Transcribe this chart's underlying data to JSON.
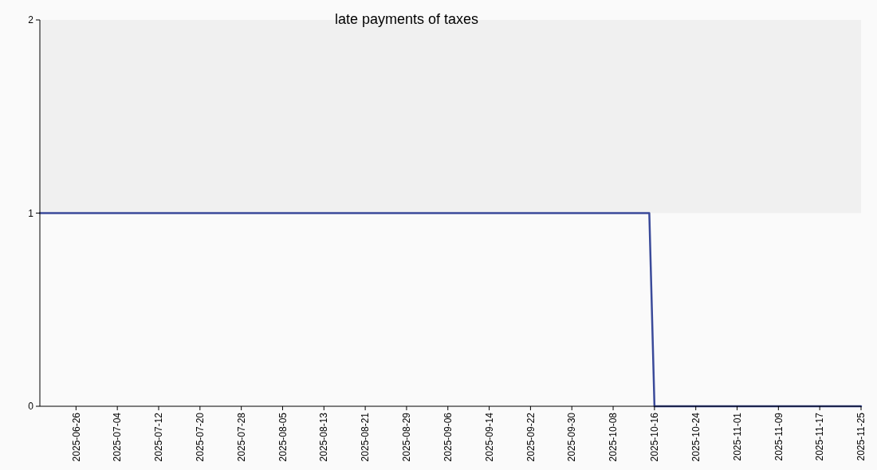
{
  "chart_data": {
    "type": "line",
    "title": "late payments of taxes",
    "x": [
      "2025-06-19",
      "2025-10-15",
      "2025-10-16",
      "2025-11-25"
    ],
    "series": [
      {
        "color": "#3a4a9a",
        "values": [
          1,
          1,
          0,
          0
        ]
      }
    ],
    "xlim": [
      "2025-06-19",
      "2025-11-25"
    ],
    "xticks": [
      "2025-06-26",
      "2025-07-04",
      "2025-07-12",
      "2025-07-20",
      "2025-07-28",
      "2025-08-05",
      "2025-08-13",
      "2025-08-21",
      "2025-08-29",
      "2025-09-06",
      "2025-09-14",
      "2025-09-22",
      "2025-09-30",
      "2025-10-08",
      "2025-10-16",
      "2025-10-24",
      "2025-11-01",
      "2025-11-09",
      "2025-11-17",
      "2025-11-25"
    ],
    "ylim": [
      0,
      2
    ],
    "yticks": [
      0,
      1,
      2
    ],
    "bands": [
      {
        "axis": "y",
        "from": 1,
        "to": 2,
        "color": "#f0f0f0"
      }
    ],
    "grid": false
  }
}
